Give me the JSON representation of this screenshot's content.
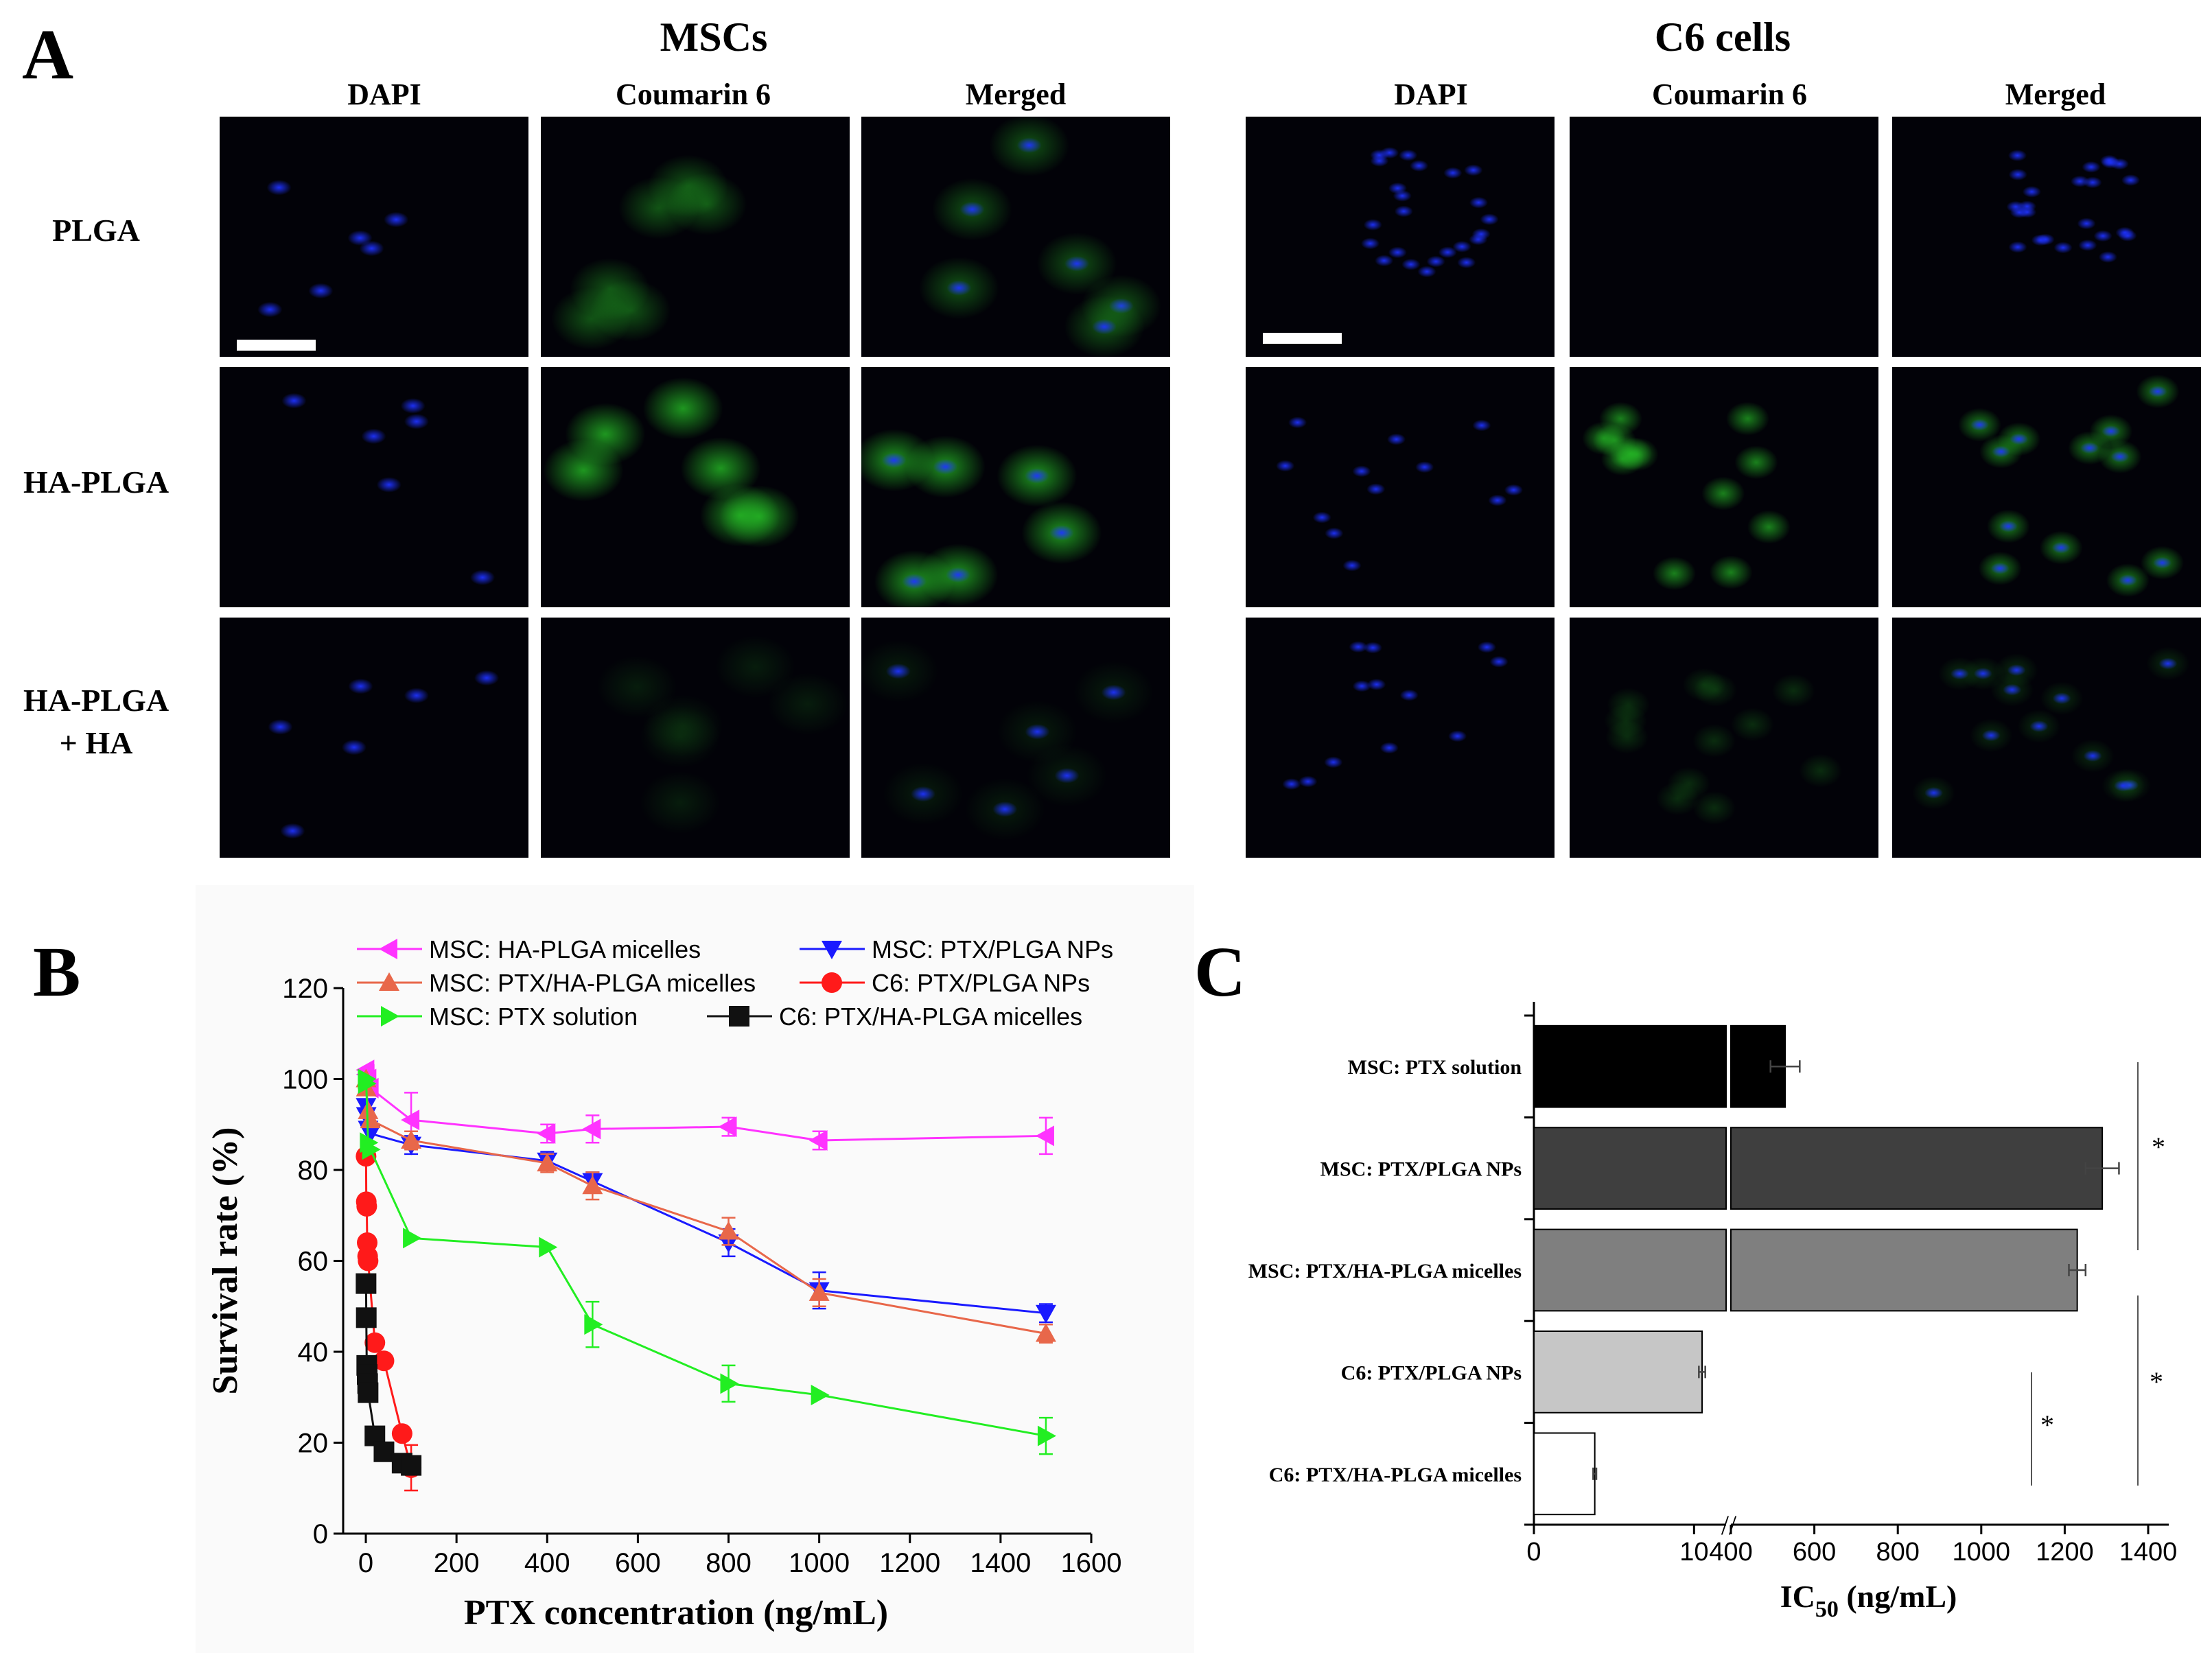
{
  "panel_a": {
    "letter": "A",
    "groups": [
      {
        "title": "MSCs",
        "columns": [
          "DAPI",
          "Coumarin 6",
          "Merged"
        ]
      },
      {
        "title": "C6 cells",
        "columns": [
          "DAPI",
          "Coumarin 6",
          "Merged"
        ]
      }
    ],
    "rows": [
      "PLGA",
      "HA-PLGA",
      "HA-PLGA\n+ HA"
    ]
  },
  "panel_b": {
    "letter": "B",
    "legend": [
      {
        "name": "MSC: HA-PLGA micelles",
        "marker": "triangle-left",
        "color": "#ff33ff"
      },
      {
        "name": "MSC: PTX/PLGA NPs",
        "marker": "triangle-down",
        "color": "#1a1aff"
      },
      {
        "name": "MSC: PTX/HA-PLGA micelles",
        "marker": "triangle-up",
        "color": "#e8674a"
      },
      {
        "name": "C6: PTX/PLGA NPs",
        "marker": "circle",
        "color": "#ff1a1a"
      },
      {
        "name": "MSC: PTX solution",
        "marker": "triangle-right",
        "color": "#22ee22"
      },
      {
        "name": "C6: PTX/HA-PLGA micelles",
        "marker": "square",
        "color": "#111111"
      }
    ]
  },
  "panel_c": {
    "letter": "C",
    "axis_title": "IC",
    "axis_sub": "50",
    "axis_unit": " (ng/mL)",
    "significance": [
      "*",
      "*",
      "*"
    ]
  },
  "chart_data": [
    {
      "type": "line",
      "xlabel": "PTX concentration (ng/mL)",
      "ylabel": "Survival rate (%)",
      "xlim": [
        -50,
        1600
      ],
      "ylim": [
        0,
        120
      ],
      "xticks": [
        0,
        200,
        400,
        600,
        800,
        1000,
        1200,
        1400,
        1600
      ],
      "yticks": [
        0,
        20,
        40,
        60,
        80,
        100,
        120
      ],
      "grid": false,
      "legend_position": "top",
      "series": [
        {
          "name": "MSC: HA-PLGA micelles",
          "color": "#ff33ff",
          "marker": "triangle-left",
          "points": [
            [
              0.5,
              102
            ],
            [
              1,
              101
            ],
            [
              5,
              100
            ],
            [
              10,
              98
            ],
            [
              100,
              91
            ],
            [
              400,
              88
            ],
            [
              500,
              89
            ],
            [
              800,
              89.5
            ],
            [
              1000,
              86.5
            ],
            [
              1500,
              87.5
            ]
          ],
          "err": [
            1,
            1,
            1,
            1,
            6,
            2,
            3,
            2,
            2,
            4
          ]
        },
        {
          "name": "MSC: PTX/PLGA NPs",
          "color": "#1a1aff",
          "marker": "triangle-down",
          "points": [
            [
              0.5,
              94
            ],
            [
              1,
              92
            ],
            [
              5,
              89
            ],
            [
              10,
              88
            ],
            [
              100,
              85.5
            ],
            [
              400,
              82
            ],
            [
              500,
              77.5
            ],
            [
              800,
              64
            ],
            [
              1000,
              53.5
            ],
            [
              1500,
              48.5
            ]
          ],
          "err": [
            1,
            1,
            1,
            1,
            2,
            2,
            2,
            3,
            4,
            2
          ]
        },
        {
          "name": "MSC: PTX/HA-PLGA micelles",
          "color": "#e8674a",
          "marker": "triangle-up",
          "points": [
            [
              0.5,
              100
            ],
            [
              1,
              98
            ],
            [
              5,
              93
            ],
            [
              10,
              91
            ],
            [
              100,
              86.5
            ],
            [
              400,
              81.5
            ],
            [
              500,
              76.5
            ],
            [
              800,
              66.5
            ],
            [
              1000,
              53
            ],
            [
              1500,
              44
            ]
          ],
          "err": [
            1,
            1,
            1,
            1,
            2,
            2,
            3,
            3,
            3,
            2
          ]
        },
        {
          "name": "C6: PTX/PLGA NPs",
          "color": "#ff1a1a",
          "marker": "circle",
          "points": [
            [
              0.5,
              83
            ],
            [
              1,
              73
            ],
            [
              2,
              72
            ],
            [
              3,
              64
            ],
            [
              4,
              61
            ],
            [
              5,
              60
            ],
            [
              20,
              42
            ],
            [
              40,
              38
            ],
            [
              80,
              22
            ],
            [
              100,
              14.5
            ]
          ],
          "err": [
            1,
            1,
            1,
            1,
            1,
            1,
            1,
            1,
            1,
            5
          ]
        },
        {
          "name": "MSC: PTX solution",
          "color": "#22ee22",
          "marker": "triangle-right",
          "points": [
            [
              0.5,
              100
            ],
            [
              1,
              99
            ],
            [
              5,
              86
            ],
            [
              10,
              84.5
            ],
            [
              100,
              65
            ],
            [
              400,
              63
            ],
            [
              500,
              46
            ],
            [
              800,
              33
            ],
            [
              1000,
              30.5
            ],
            [
              1500,
              21.5
            ]
          ],
          "err": [
            1,
            1,
            1,
            1,
            1,
            1,
            5,
            4,
            1,
            4
          ]
        },
        {
          "name": "C6: PTX/HA-PLGA micelles",
          "color": "#111111",
          "marker": "square",
          "points": [
            [
              0.5,
              55
            ],
            [
              1,
              47.5
            ],
            [
              2,
              37
            ],
            [
              3,
              35
            ],
            [
              4,
              33
            ],
            [
              5,
              31
            ],
            [
              20,
              21.5
            ],
            [
              40,
              18
            ],
            [
              80,
              15.5
            ],
            [
              100,
              15
            ]
          ],
          "err": [
            1,
            1,
            1,
            1,
            1,
            1,
            1,
            1,
            1,
            1
          ]
        }
      ]
    },
    {
      "type": "bar",
      "orientation": "horizontal",
      "xlabel": "IC50 (ng/mL)",
      "categories": [
        "MSC: PTX solution",
        "MSC: PTX/PLGA NPs",
        "MSC: PTX/HA-PLGA micelles",
        "C6: PTX/PLGA NPs",
        "C6: PTX/HA-PLGA micelles"
      ],
      "values": [
        530,
        1290,
        1230,
        10.5,
        3.8
      ],
      "errors": [
        35,
        40,
        20,
        0.2,
        0.1
      ],
      "colors": [
        "#000000",
        "#3f3f3f",
        "#7f7f7f",
        "#c6c6c6",
        "#ffffff"
      ],
      "axis_break": [
        12,
        400
      ],
      "xticks_low": [
        0,
        10
      ],
      "xticks_high": [
        400,
        600,
        800,
        1000,
        1200,
        1400
      ]
    }
  ]
}
